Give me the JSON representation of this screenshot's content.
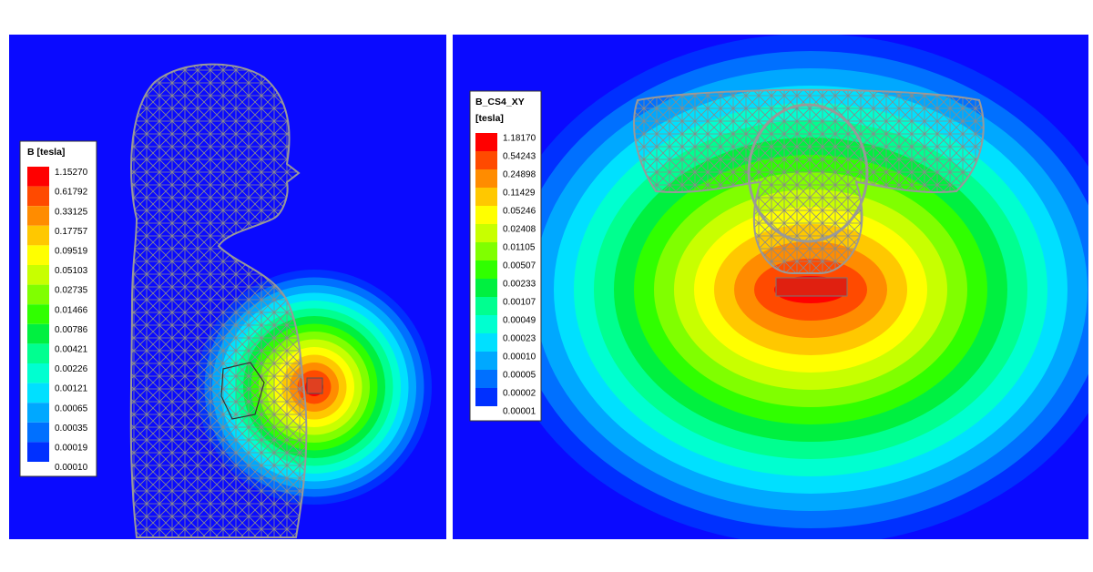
{
  "left_legend": {
    "title": "B [tesla]",
    "labels": [
      "1.15270",
      "0.61792",
      "0.33125",
      "0.17757",
      "0.09519",
      "0.05103",
      "0.02735",
      "0.01466",
      "0.00786",
      "0.00421",
      "0.00226",
      "0.00121",
      "0.00065",
      "0.00035",
      "0.00019",
      "0.00010"
    ]
  },
  "right_legend": {
    "title": "B_CS4_XY",
    "unit": "[tesla]",
    "labels": [
      "1.18170",
      "0.54243",
      "0.24898",
      "0.11429",
      "0.05246",
      "0.02408",
      "0.01105",
      "0.00507",
      "0.00233",
      "0.00107",
      "0.00049",
      "0.00023",
      "0.00010",
      "0.00005",
      "0.00002",
      "0.00001"
    ]
  }
}
